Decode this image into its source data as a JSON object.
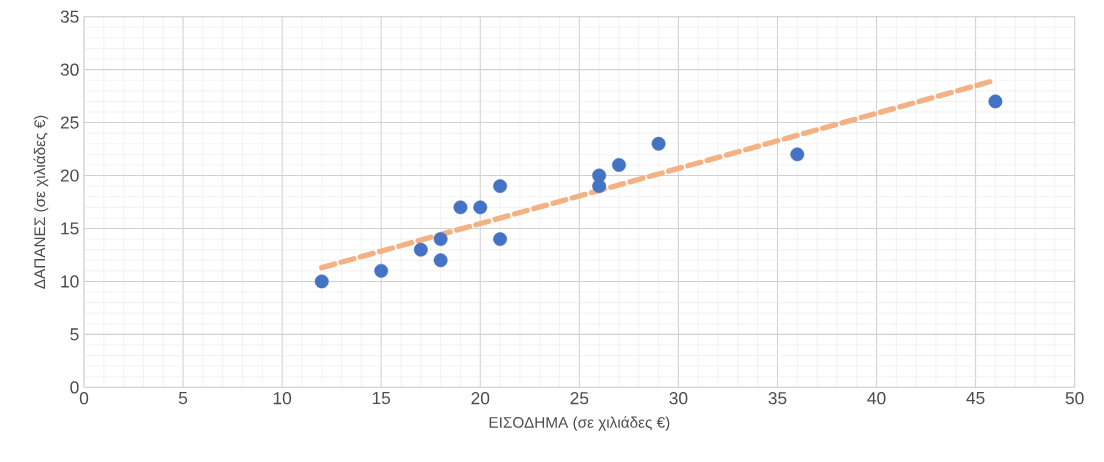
{
  "chart_data": {
    "type": "scatter",
    "xlabel": "ΕΙΣΟΔΗΜΑ (σε χιλιάδες €)",
    "ylabel": "ΔΑΠΑΝΕΣ (σε χιλιάδες €)",
    "xlim": [
      0,
      50
    ],
    "ylim": [
      0,
      35
    ],
    "xticks": [
      0,
      5,
      10,
      15,
      20,
      25,
      30,
      35,
      40,
      45,
      50
    ],
    "yticks": [
      0,
      5,
      10,
      15,
      20,
      25,
      30,
      35
    ],
    "grid": true,
    "series": [
      {
        "color": "#4472c4",
        "marker": "circle",
        "x": [
          12,
          15,
          17,
          18,
          18,
          19,
          20,
          21,
          21,
          26,
          26,
          27,
          29,
          36,
          46
        ],
        "values": [
          10,
          11,
          13,
          14,
          12,
          17,
          17,
          19,
          14,
          20,
          19,
          21,
          23,
          22,
          27
        ]
      },
      {
        "type": "line",
        "color": "#f4b183",
        "marker": "none",
        "line_style": "dashed",
        "x": [
          12,
          46
        ],
        "values": [
          11.3,
          29.0
        ]
      }
    ]
  }
}
